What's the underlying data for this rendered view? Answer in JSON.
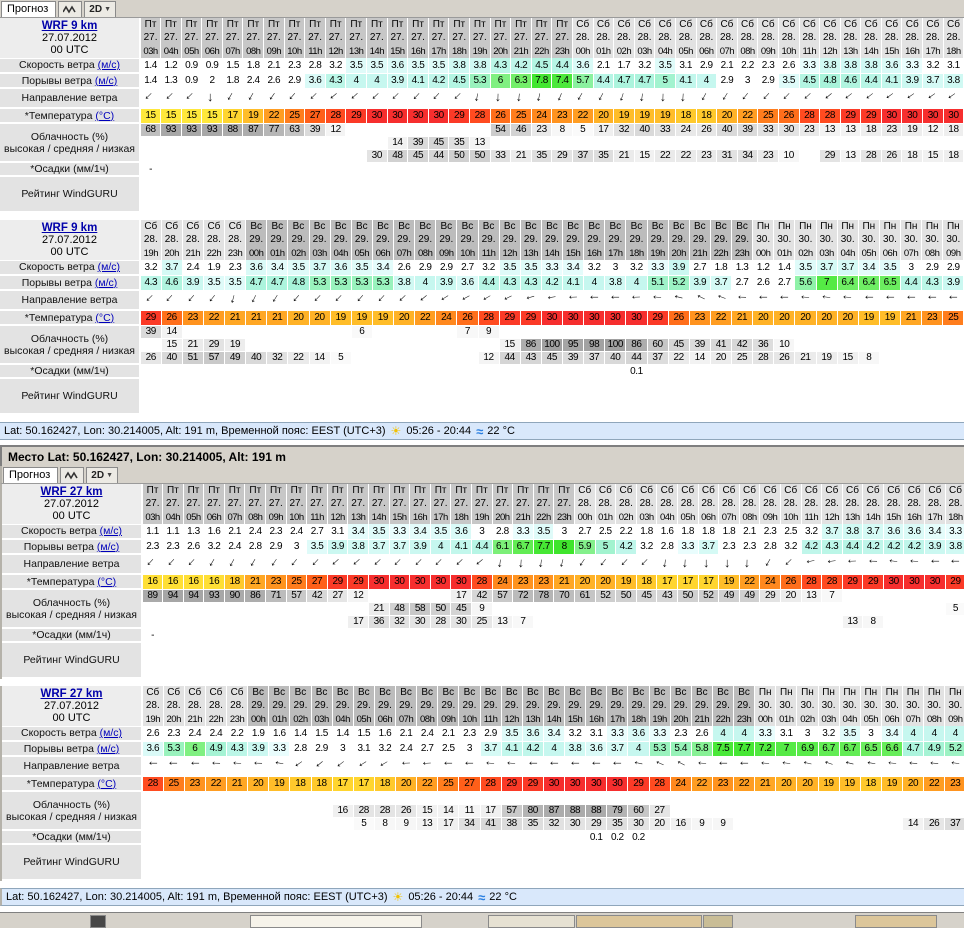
{
  "tabs": {
    "forecast": "Прогноз",
    "view": "2D"
  },
  "icons": {
    "arrow": "→",
    "sun": "☀",
    "waves": "≈",
    "caret": "▼"
  },
  "section2_header": "Место Lat: 50.162427, Lon: 30.214005, Alt: 191 m",
  "status_bar": {
    "text": "Lat: 50.162427, Lon: 30.214005, Alt: 191 m, Временной пояс: EEST (UTC+3)",
    "sun_times": "05:26 - 20:44",
    "water_temp": "22 °C"
  },
  "row_labels": {
    "speed": "Скорость ветра",
    "speed_unit": "(м/с)",
    "gusts": "Порывы ветра",
    "gusts_unit": "(м/с)",
    "dir": "Направление ветра",
    "temp": "*Температура",
    "temp_unit": "(°C)",
    "cloud_title": "Облачность (%)",
    "cloud_sub": "высокая / средняя / низкая",
    "precip": "*Осадки (мм/1ч)",
    "rating": "Рейтинг WindGURU"
  },
  "colors": {
    "days": {
      "Пт": "#c7c7c7",
      "Сб": "#e2e2e2",
      "Вс": "#bcbcbc",
      "Пн": "#e2e2e2"
    },
    "speed_stops": [
      [
        3.3,
        "#e9fdfd"
      ],
      [
        4,
        "#c6f7ef"
      ],
      [
        4.8,
        "#a8f3da"
      ],
      [
        5.5,
        "#93f2b2"
      ],
      [
        6.2,
        "#78ef6e"
      ],
      [
        7,
        "#55ea45"
      ],
      [
        8,
        "#3fe52c"
      ]
    ],
    "temp_stops": [
      [
        15,
        "#ffe83b"
      ],
      [
        17,
        "#ffd52f"
      ],
      [
        19,
        "#ffbd29"
      ],
      [
        21,
        "#ffa724"
      ],
      [
        23,
        "#ff931f"
      ],
      [
        25,
        "#ff7d1d"
      ],
      [
        27,
        "#ff5f19"
      ],
      [
        28,
        "#ff4b20"
      ],
      [
        29,
        "#fb3a27"
      ],
      [
        30,
        "#f62e2e"
      ]
    ]
  },
  "tables": [
    {
      "model": "WRF 9 km",
      "run_date": "27.07.2012",
      "run_utc": "00 UTC",
      "days": [
        [
          "Пт",
          "27.",
          3,
          21
        ],
        [
          "Сб",
          "28.",
          0,
          19
        ]
      ],
      "speed": [
        1.4,
        1.2,
        0.9,
        0.9,
        1.5,
        1.8,
        2.1,
        2.3,
        2.8,
        3.2,
        3.5,
        3.5,
        3.6,
        3.5,
        3.5,
        3.8,
        3.8,
        4.3,
        4.2,
        4.5,
        4.4,
        3.6,
        2.1,
        1.7,
        3.2,
        3.5,
        3.1,
        2.9,
        2.1,
        2.2,
        2.3,
        2.6,
        3.3,
        3.8,
        3.8,
        3.8,
        3.6,
        3.3,
        3.2,
        3.1
      ],
      "gusts": [
        1.4,
        1.3,
        0.9,
        2,
        1.8,
        2.4,
        2.6,
        2.9,
        3.6,
        4.3,
        4,
        4,
        3.9,
        4.1,
        4.2,
        4.5,
        5.3,
        6,
        6.3,
        7.8,
        7.4,
        5.7,
        4.4,
        4.7,
        4.7,
        5,
        4.1,
        4,
        2.9,
        3,
        2.9,
        3.5,
        4.5,
        4.8,
        4.6,
        4.4,
        4.1,
        3.9,
        3.7,
        3.8
      ],
      "dir": [
        135,
        135,
        135,
        90,
        120,
        120,
        125,
        130,
        135,
        140,
        138,
        136,
        135,
        133,
        132,
        135,
        100,
        92,
        96,
        102,
        112,
        120,
        118,
        108,
        98,
        92,
        94,
        118,
        122,
        128,
        132,
        134,
        137,
        140,
        142,
        142,
        144,
        145,
        145,
        145
      ],
      "temp": [
        15,
        15,
        15,
        15,
        17,
        19,
        22,
        25,
        27,
        28,
        29,
        30,
        30,
        30,
        30,
        29,
        28,
        26,
        25,
        24,
        23,
        22,
        20,
        19,
        19,
        19,
        18,
        18,
        20,
        22,
        25,
        26,
        28,
        28,
        29,
        29,
        30,
        30,
        30,
        30
      ],
      "cloud_hi": [
        "68",
        "93",
        "93",
        "93",
        "88",
        "87",
        "77",
        "63",
        "39",
        "12",
        "",
        "",
        "",
        "",
        "",
        "",
        "",
        "54",
        "46",
        "23",
        "8",
        "5",
        "17",
        "32",
        "40",
        "33",
        "24",
        "26",
        "40",
        "39",
        "33",
        "30",
        "23",
        "13",
        "13",
        "18",
        "23",
        "19",
        "12",
        "18"
      ],
      "cloud_mid": [
        "",
        "",
        "",
        "",
        "",
        "",
        "",
        "",
        "",
        "",
        "",
        "",
        "14",
        "39",
        "45",
        "35",
        "13",
        "",
        "",
        "",
        "",
        "",
        "",
        "",
        "",
        "",
        "",
        "",
        "",
        "",
        "",
        "",
        "",
        "",
        "",
        "",
        "",
        "",
        "",
        ""
      ],
      "cloud_lo": [
        "",
        "",
        "",
        "",
        "",
        "",
        "",
        "",
        "",
        "",
        "",
        "30",
        "48",
        "45",
        "44",
        "50",
        "50",
        "33",
        "21",
        "35",
        "29",
        "37",
        "35",
        "21",
        "15",
        "22",
        "22",
        "23",
        "31",
        "34",
        "23",
        "10",
        "",
        "29",
        "13",
        "28",
        "26",
        "18",
        "15",
        "18"
      ],
      "precip": [
        "-",
        "",
        "",
        "",
        "",
        "",
        "",
        "",
        "",
        "",
        "",
        "",
        "",
        "",
        "",
        "",
        "",
        "",
        "",
        "",
        "",
        "",
        "",
        "",
        "",
        "",
        "",
        "",
        "",
        "",
        "",
        "",
        "",
        "",
        "",
        "",
        "",
        "",
        "",
        ""
      ]
    },
    {
      "model": "WRF 9 km",
      "run_date": "27.07.2012",
      "run_utc": "00 UTC",
      "days": [
        [
          "Сб",
          "28.",
          19,
          5
        ],
        [
          "Вс",
          "29.",
          0,
          24
        ],
        [
          "Пн",
          "30.",
          0,
          10
        ]
      ],
      "speed": [
        3.2,
        3.7,
        2.4,
        1.9,
        2.3,
        3.6,
        3.4,
        3.5,
        3.7,
        3.6,
        3.5,
        3.4,
        2.6,
        2.9,
        2.9,
        2.7,
        3.2,
        3.5,
        3.5,
        3.3,
        3.4,
        3.2,
        3,
        3.2,
        3.3,
        3.9,
        2.7,
        1.8,
        1.3,
        1.2,
        1.4,
        3.5,
        3.7,
        3.7,
        3.4,
        3.5,
        3,
        2.9,
        2.9
      ],
      "gusts": [
        4.3,
        4.6,
        3.9,
        3.5,
        3.5,
        4.7,
        4.7,
        4.8,
        5.3,
        5.3,
        5.3,
        5.3,
        3.8,
        4,
        3.9,
        3.6,
        4.4,
        4.3,
        4.3,
        4.2,
        4.1,
        4,
        3.8,
        4,
        5.1,
        5.2,
        3.9,
        3.7,
        2.7,
        2.6,
        2.7,
        5.6,
        7,
        6.4,
        6.4,
        6.5,
        4.4,
        4.3,
        3.9
      ],
      "dir": [
        135,
        132,
        130,
        128,
        105,
        115,
        122,
        130,
        134,
        134,
        130,
        133,
        136,
        140,
        148,
        152,
        150,
        154,
        164,
        170,
        178,
        180,
        180,
        178,
        184,
        194,
        206,
        200,
        182,
        180,
        180,
        184,
        188,
        184,
        180,
        180,
        180,
        180,
        180
      ],
      "temp": [
        29,
        26,
        23,
        22,
        21,
        21,
        21,
        20,
        20,
        19,
        19,
        19,
        20,
        22,
        24,
        26,
        28,
        29,
        29,
        30,
        30,
        30,
        30,
        30,
        29,
        26,
        23,
        22,
        21,
        20,
        20,
        20,
        20,
        20,
        19,
        19,
        21,
        23,
        25
      ],
      "cloud_hi": [
        "39",
        "14",
        "",
        "",
        "",
        "",
        "",
        "",
        "",
        "",
        "6",
        "",
        "",
        "",
        "",
        "7",
        "9",
        "",
        "",
        "",
        "",
        "",
        "",
        "",
        "",
        "",
        "",
        "",
        "",
        "",
        "",
        "",
        "",
        "",
        "",
        "",
        "",
        "",
        ""
      ],
      "cloud_mid": [
        "",
        "15",
        "21",
        "29",
        "19",
        "",
        "",
        "",
        "",
        "",
        "",
        "",
        "",
        "",
        "",
        "",
        "",
        "15",
        "86",
        "100",
        "95",
        "98",
        "100",
        "86",
        "60",
        "45",
        "39",
        "41",
        "42",
        "36",
        "10",
        "",
        "",
        "",
        "",
        "",
        "",
        "",
        ""
      ],
      "cloud_lo": [
        "26",
        "40",
        "51",
        "57",
        "49",
        "40",
        "32",
        "22",
        "14",
        "5",
        "",
        "",
        "",
        "",
        "",
        "",
        "12",
        "44",
        "43",
        "45",
        "39",
        "37",
        "40",
        "44",
        "37",
        "22",
        "14",
        "20",
        "25",
        "28",
        "26",
        "21",
        "19",
        "15",
        "8",
        "",
        "",
        "",
        ""
      ],
      "precip": [
        "",
        "",
        "",
        "",
        "",
        "",
        "",
        "",
        "",
        "",
        "",
        "",
        "",
        "",
        "",
        "",
        "",
        "",
        "",
        "",
        "",
        "",
        "",
        "0.1",
        "",
        "",
        "",
        "",
        "",
        "",
        "",
        "",
        "",
        "",
        "",
        "",
        "",
        "",
        ""
      ]
    },
    {
      "model": "WRF 27 km",
      "run_date": "27.07.2012",
      "run_utc": "00 UTC",
      "days": [
        [
          "Пт",
          "27.",
          3,
          21
        ],
        [
          "Сб",
          "28.",
          0,
          19
        ]
      ],
      "speed": [
        1.1,
        1.1,
        1.3,
        1.6,
        2.1,
        2.4,
        2.3,
        2.4,
        2.7,
        3.1,
        3.4,
        3.5,
        3.3,
        3.4,
        3.5,
        3.6,
        3,
        2.8,
        3.3,
        3.5,
        3,
        2.7,
        2.5,
        2.2,
        1.8,
        1.6,
        1.8,
        1.8,
        1.8,
        2.1,
        2.3,
        2.5,
        3.2,
        3.7,
        3.8,
        3.7,
        3.6,
        3.6,
        3.4,
        3.3
      ],
      "gusts": [
        2.3,
        2.3,
        2.6,
        3.2,
        2.4,
        2.8,
        2.9,
        3,
        3.5,
        3.9,
        3.8,
        3.7,
        3.7,
        3.9,
        4,
        4.1,
        4.4,
        6.1,
        6.7,
        7.7,
        8,
        5.9,
        5,
        4.2,
        3.2,
        2.8,
        3.3,
        3.7,
        2.3,
        2.3,
        2.8,
        3.2,
        4.2,
        4.3,
        4.4,
        4.2,
        4.2,
        4.2,
        3.9,
        3.8
      ],
      "dir": [
        132,
        132,
        133,
        120,
        118,
        120,
        124,
        128,
        133,
        138,
        138,
        136,
        134,
        134,
        134,
        136,
        140,
        98,
        94,
        98,
        104,
        124,
        128,
        133,
        134,
        98,
        94,
        90,
        90,
        92,
        120,
        135,
        168,
        172,
        178,
        182,
        188,
        184,
        180,
        180
      ],
      "temp": [
        16,
        16,
        16,
        16,
        18,
        21,
        23,
        25,
        27,
        29,
        29,
        30,
        30,
        30,
        30,
        30,
        28,
        24,
        23,
        23,
        21,
        20,
        20,
        19,
        18,
        17,
        17,
        17,
        19,
        22,
        24,
        26,
        28,
        28,
        29,
        29,
        30,
        30,
        30,
        29
      ],
      "cloud_hi": [
        "89",
        "94",
        "94",
        "93",
        "90",
        "86",
        "71",
        "57",
        "42",
        "27",
        "12",
        "",
        "",
        "",
        "",
        "17",
        "42",
        "57",
        "72",
        "78",
        "70",
        "61",
        "52",
        "50",
        "45",
        "43",
        "50",
        "52",
        "49",
        "49",
        "29",
        "20",
        "13",
        "7",
        "",
        "",
        "",
        "",
        "",
        ""
      ],
      "cloud_mid": [
        "",
        "",
        "",
        "",
        "",
        "",
        "",
        "",
        "",
        "",
        "",
        "21",
        "48",
        "58",
        "50",
        "45",
        "9",
        "",
        "",
        "",
        "",
        "",
        "",
        "",
        "",
        "",
        "",
        "",
        "",
        "",
        "",
        "",
        "",
        "",
        "",
        "",
        "",
        "",
        "",
        "5"
      ],
      "cloud_lo": [
        "",
        "",
        "",
        "",
        "",
        "",
        "",
        "",
        "",
        "",
        "17",
        "36",
        "32",
        "30",
        "28",
        "30",
        "25",
        "13",
        "7",
        "",
        "",
        "",
        "",
        "",
        "",
        "",
        "",
        "",
        "",
        "",
        "",
        "",
        "",
        "",
        "13",
        "8",
        "",
        "",
        "",
        ""
      ],
      "precip": [
        "-",
        "",
        "",
        "",
        "",
        "",
        "",
        "",
        "",
        "",
        "",
        "",
        "",
        "",
        "",
        "",
        "",
        "",
        "",
        "",
        "",
        "",
        "",
        "",
        "",
        "",
        "",
        "",
        "",
        "",
        "",
        "",
        "",
        "",
        "",
        "",
        "",
        "",
        "",
        ""
      ]
    },
    {
      "model": "WRF 27 km",
      "run_date": "27.07.2012",
      "run_utc": "00 UTC",
      "days": [
        [
          "Сб",
          "28.",
          19,
          5
        ],
        [
          "Вс",
          "29.",
          0,
          24
        ],
        [
          "Пн",
          "30.",
          0,
          10
        ]
      ],
      "speed": [
        2.6,
        2.3,
        2.4,
        2.4,
        2.2,
        1.9,
        1.6,
        1.4,
        1.5,
        1.4,
        1.5,
        1.6,
        2.1,
        2.4,
        2.1,
        2.3,
        2.9,
        3.5,
        3.6,
        3.4,
        3.2,
        3.1,
        3.3,
        3.6,
        3.3,
        2.3,
        2.6,
        4,
        4,
        3.3,
        3.1,
        3,
        3.2,
        3.5,
        3,
        3.4,
        4,
        4,
        4
      ],
      "gusts": [
        3.6,
        5.3,
        6,
        4.9,
        4.3,
        3.9,
        3.3,
        2.8,
        2.9,
        3,
        3.1,
        3.2,
        2.4,
        2.7,
        2.5,
        3,
        3.7,
        4.1,
        4.2,
        4,
        3.8,
        3.6,
        3.7,
        4,
        5.3,
        5.4,
        5.8,
        7.5,
        7.7,
        7.2,
        7,
        6.9,
        6.7,
        6.7,
        6.5,
        6.6,
        4.7,
        4.9,
        5.2
      ],
      "dir": [
        180,
        180,
        180,
        182,
        184,
        182,
        190,
        145,
        140,
        142,
        148,
        150,
        178,
        176,
        180,
        180,
        184,
        184,
        180,
        180,
        180,
        180,
        180,
        192,
        204,
        208,
        184,
        180,
        180,
        184,
        188,
        193,
        198,
        194,
        190,
        186,
        185,
        185,
        188
      ],
      "temp": [
        28,
        25,
        23,
        22,
        21,
        20,
        19,
        18,
        18,
        17,
        17,
        18,
        20,
        22,
        25,
        27,
        28,
        29,
        29,
        30,
        30,
        30,
        30,
        29,
        28,
        24,
        22,
        23,
        22,
        21,
        20,
        20,
        19,
        19,
        18,
        19,
        20,
        22,
        23
      ],
      "cloud_hi": [
        "",
        "",
        "",
        "",
        "",
        "",
        "",
        "",
        "",
        "",
        "",
        "",
        "",
        "",
        "",
        "",
        "",
        "",
        "",
        "",
        "",
        "",
        "",
        "",
        "",
        "",
        "",
        "",
        "",
        "",
        "",
        "",
        "",
        "",
        "",
        "",
        "",
        "",
        ""
      ],
      "cloud_mid": [
        "",
        "",
        "",
        "",
        "",
        "",
        "",
        "",
        "",
        "16",
        "28",
        "28",
        "26",
        "15",
        "14",
        "11",
        "17",
        "57",
        "80",
        "87",
        "88",
        "88",
        "79",
        "60",
        "27",
        "",
        "",
        "",
        "",
        "",
        "",
        "",
        "",
        "",
        "",
        "",
        "",
        "",
        ""
      ],
      "cloud_lo": [
        "",
        "",
        "",
        "",
        "",
        "",
        "",
        "",
        "",
        "",
        "5",
        "8",
        "9",
        "13",
        "17",
        "34",
        "41",
        "38",
        "35",
        "32",
        "30",
        "29",
        "35",
        "30",
        "20",
        "16",
        "9",
        "9",
        "",
        "",
        "",
        "",
        "",
        "",
        "",
        "",
        "14",
        "26",
        "37"
      ],
      "precip": [
        "",
        "",
        "",
        "",
        "",
        "",
        "",
        "",
        "",
        "",
        "",
        "",
        "",
        "",
        "",
        "",
        "",
        "",
        "",
        "",
        "",
        "0.1",
        "0.2",
        "0.2",
        "",
        "",
        "",
        "",
        "",
        "",
        "",
        "",
        "",
        "",
        "",
        "",
        "",
        "",
        ""
      ]
    }
  ]
}
